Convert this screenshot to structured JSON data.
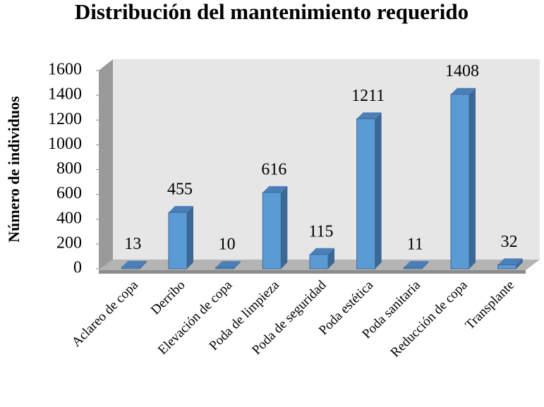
{
  "chart_data": {
    "type": "bar3d",
    "title": "Distribución del mantenimiento requerido",
    "ylabel": "Número de individuos",
    "categories": [
      "Aclareo de copa",
      "Derribo",
      "Elevación de copa",
      "Poda de limpieza",
      "Poda de seguridad",
      "Poda estética",
      "Poda sanitaria",
      "Reducción de copa",
      "Transplante"
    ],
    "values": [
      13,
      455,
      10,
      616,
      115,
      1211,
      11,
      1408,
      32
    ],
    "color": "#5b9bd5",
    "ylim": [
      0,
      1600
    ],
    "yticks": [
      0,
      200,
      400,
      600,
      800,
      1000,
      1200,
      1400,
      1600
    ]
  }
}
